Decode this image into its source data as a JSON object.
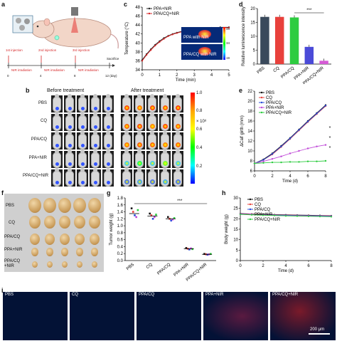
{
  "panels": {
    "a": {
      "label": "a",
      "injections": [
        "1st injection",
        "2nd injection",
        "3rd injection"
      ],
      "irradiations": [
        "NIR irradiation",
        "NIR irradiation",
        "NIR irradiation"
      ],
      "timeline_end": "Sacrifice",
      "timeline_ticks": [
        "0",
        "4",
        "8",
        "12 (day)"
      ]
    },
    "b": {
      "label": "b",
      "before": "Before treatment",
      "after": "After treatment",
      "rows": [
        "PBS",
        "CQ",
        "PPA/CQ",
        "PPA+NIR",
        "PPA/CQ+NIR"
      ],
      "colorbar_ticks": [
        "1.0",
        "0.8",
        "0.6",
        "0.4",
        "0.2"
      ],
      "colorbar_unit": "× 10⁸"
    },
    "c": {
      "label": "c",
      "legend": [
        "PPA+NIR",
        "PPA/CQ+NIR"
      ],
      "inset_labels": [
        "PPA with NIR",
        "PPA/CQ with NIR"
      ],
      "inset_scale": [
        "48",
        "34",
        "19"
      ]
    },
    "d": {
      "label": "d",
      "sig": "***"
    },
    "e": {
      "label": "e",
      "sig": [
        "*",
        "*",
        "*"
      ]
    },
    "f": {
      "label": "f",
      "rows": [
        "PBS",
        "CQ",
        "PPA/CQ",
        "PPA+NIR",
        "PPA/CQ\n+NIR"
      ]
    },
    "g": {
      "label": "g",
      "sig": "***"
    },
    "h": {
      "label": "h"
    },
    "i": {
      "label": "i",
      "titles": [
        "PBS",
        "CQ",
        "PPA/CQ",
        "PPA+NIR",
        "PPA/CQ+NIR"
      ],
      "scale": "200 μm"
    }
  },
  "chart_data": [
    {
      "type": "line",
      "panel": "c",
      "xlabel": "Time (min)",
      "ylabel": "Temperature (°C)",
      "xlim": [
        0,
        5
      ],
      "ylim": [
        34,
        48
      ],
      "xticks": [
        0,
        1,
        2,
        3,
        4,
        5
      ],
      "yticks": [
        34,
        36,
        38,
        40,
        42,
        44,
        46,
        48
      ],
      "series": [
        {
          "name": "PPA+NIR",
          "color": "#222222",
          "x": [
            0,
            0.25,
            0.5,
            0.75,
            1,
            1.25,
            1.5,
            1.75,
            2,
            2.5,
            3,
            3.5,
            4,
            4.5,
            5
          ],
          "values": [
            36.2,
            37.5,
            38.6,
            39.6,
            40.4,
            41.1,
            41.6,
            42.0,
            42.3,
            42.8,
            43.1,
            43.3,
            43.4,
            43.5,
            43.5
          ]
        },
        {
          "name": "PPA/CQ+NIR",
          "color": "#d62728",
          "x": [
            0,
            0.25,
            0.5,
            0.75,
            1,
            1.25,
            1.5,
            1.75,
            2,
            2.5,
            3,
            3.5,
            4,
            4.5,
            5
          ],
          "values": [
            36.0,
            37.3,
            38.4,
            39.4,
            40.2,
            40.9,
            41.5,
            41.9,
            42.2,
            42.7,
            43.0,
            43.2,
            43.3,
            43.4,
            43.4
          ]
        }
      ]
    },
    {
      "type": "bar",
      "panel": "d",
      "ylabel": "Relative luminescence intensity",
      "ylim": [
        0,
        20
      ],
      "yticks": [
        0,
        5,
        10,
        15,
        20
      ],
      "categories": [
        "PBS",
        "CQ",
        "PPA/CQ",
        "PPA+NIR",
        "PPA/CQ+NIR"
      ],
      "values": [
        17.0,
        17.0,
        16.8,
        6.2,
        1.2
      ],
      "colors": [
        "#3a4a5c",
        "#e8413c",
        "#2ecc40",
        "#4b4bd8",
        "#d65bd6"
      ]
    },
    {
      "type": "line",
      "panel": "e",
      "xlabel": "Time (d)",
      "ylabel": "ΔCalf girth (mm)",
      "xlim": [
        0,
        8
      ],
      "ylim": [
        6,
        22
      ],
      "xticks": [
        0,
        2,
        4,
        6,
        8
      ],
      "yticks": [
        6,
        8,
        10,
        12,
        14,
        16,
        18,
        20,
        22
      ],
      "x": [
        0,
        1,
        2,
        3,
        4,
        5,
        6,
        7,
        8
      ],
      "series": [
        {
          "name": "PBS",
          "color": "#111111",
          "values": [
            7.5,
            8.3,
            9.5,
            11.0,
            12.6,
            14.3,
            16.0,
            17.6,
            19.2
          ]
        },
        {
          "name": "CQ",
          "color": "#e8413c",
          "values": [
            7.5,
            8.2,
            9.3,
            10.8,
            12.4,
            14.1,
            15.8,
            17.4,
            19.0
          ]
        },
        {
          "name": "PPA/CQ",
          "color": "#2a4bd8",
          "values": [
            7.5,
            8.2,
            9.4,
            10.9,
            12.5,
            14.2,
            15.9,
            17.5,
            19.1
          ]
        },
        {
          "name": "PPA+NIR",
          "color": "#c04ad8",
          "values": [
            7.5,
            7.9,
            8.4,
            8.9,
            9.5,
            10.0,
            10.5,
            10.9,
            11.2
          ]
        },
        {
          "name": "PPA/CQ+NIR",
          "color": "#2ecc40",
          "values": [
            7.5,
            7.6,
            7.7,
            7.7,
            7.8,
            7.8,
            7.9,
            7.9,
            8.0
          ]
        }
      ]
    },
    {
      "type": "scatter",
      "panel": "g",
      "ylabel": "Tumor weight (g)",
      "ylim": [
        0.0,
        1.8
      ],
      "yticks": [
        0.0,
        0.2,
        0.4,
        0.6,
        0.8,
        1.0,
        1.2,
        1.4,
        1.6,
        1.8
      ],
      "categories": [
        "PBS",
        "CQ",
        "PPA/CQ",
        "PPA+NIR",
        "PPA/CQ+NIR"
      ],
      "means": [
        1.35,
        1.28,
        1.2,
        0.34,
        0.18
      ],
      "points": [
        [
          1.5,
          1.4,
          1.3,
          1.25,
          1.45
        ],
        [
          1.35,
          1.3,
          1.2,
          1.25,
          1.32
        ],
        [
          1.25,
          1.2,
          1.15,
          1.18,
          1.22
        ],
        [
          0.36,
          0.34,
          0.32,
          0.35,
          0.33
        ],
        [
          0.19,
          0.18,
          0.17,
          0.18,
          0.19
        ]
      ],
      "colors": [
        "#111111",
        "#e8413c",
        "#2a4bd8",
        "#c04ad8",
        "#2ecc40"
      ]
    },
    {
      "type": "line",
      "panel": "h",
      "xlabel": "Time (d)",
      "ylabel": "Body weight (g)",
      "xlim": [
        0,
        8
      ],
      "ylim": [
        0,
        30
      ],
      "xticks": [
        0,
        2,
        4,
        6,
        8
      ],
      "yticks": [
        0,
        5,
        10,
        15,
        20,
        25,
        30
      ],
      "x": [
        0,
        1,
        2,
        3,
        4,
        5,
        6,
        7,
        8
      ],
      "series": [
        {
          "name": "PBS",
          "color": "#111111",
          "values": [
            22.5,
            22.3,
            22.2,
            22.0,
            21.9,
            21.8,
            21.7,
            21.6,
            21.5
          ]
        },
        {
          "name": "CQ",
          "color": "#e8413c",
          "values": [
            22.4,
            22.2,
            22.0,
            21.9,
            21.8,
            21.7,
            21.6,
            21.5,
            21.4
          ]
        },
        {
          "name": "PPA/CQ",
          "color": "#2a4bd8",
          "values": [
            22.3,
            22.1,
            21.9,
            21.8,
            21.7,
            21.6,
            21.5,
            21.4,
            21.3
          ]
        },
        {
          "name": "PPA+NIR",
          "color": "#c04ad8",
          "values": [
            22.2,
            22.0,
            21.8,
            21.6,
            21.5,
            21.4,
            21.3,
            21.2,
            21.1
          ]
        },
        {
          "name": "PPA/CQ+NIR",
          "color": "#2ecc40",
          "values": [
            22.1,
            21.9,
            21.7,
            21.6,
            21.4,
            21.3,
            21.2,
            21.1,
            21.0
          ]
        }
      ]
    }
  ]
}
